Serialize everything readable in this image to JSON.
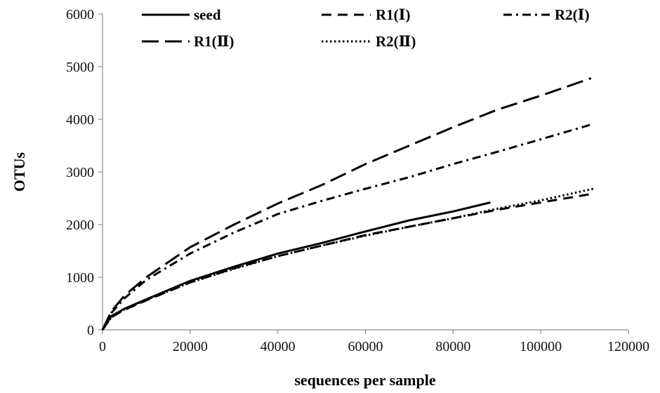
{
  "chart_data": {
    "type": "line",
    "title": "",
    "xlabel": "sequences per sample",
    "ylabel": "OTUs",
    "xlim": [
      0,
      120000
    ],
    "ylim": [
      0,
      6000
    ],
    "xticks": [
      0,
      20000,
      40000,
      60000,
      80000,
      100000,
      120000
    ],
    "yticks": [
      0,
      1000,
      2000,
      3000,
      4000,
      5000,
      6000
    ],
    "xtick_labels": [
      "0",
      "20000",
      "40000",
      "60000",
      "80000",
      "100000",
      "120000"
    ],
    "ytick_labels": [
      "0",
      "1000",
      "2000",
      "3000",
      "4000",
      "5000",
      "6000"
    ],
    "grid": false,
    "legend_position": "top",
    "series": [
      {
        "name": "seed",
        "style": "solid",
        "color": "#000000",
        "x": [
          0,
          2000,
          5000,
          10000,
          20000,
          30000,
          40000,
          50000,
          60000,
          70000,
          80000,
          88500
        ],
        "y": [
          0,
          260,
          400,
          580,
          930,
          1200,
          1450,
          1650,
          1870,
          2080,
          2250,
          2420
        ]
      },
      {
        "name": "R1(Ⅰ)",
        "style": "dashed",
        "color": "#000000",
        "x": [
          0,
          2000,
          5000,
          10000,
          20000,
          30000,
          40000,
          50000,
          60000,
          70000,
          80000,
          90000,
          100000,
          111500
        ],
        "y": [
          0,
          240,
          380,
          560,
          900,
          1170,
          1400,
          1600,
          1800,
          1960,
          2120,
          2280,
          2420,
          2580
        ]
      },
      {
        "name": "R2(Ⅰ)",
        "style": "dashdot",
        "color": "#000000",
        "x": [
          0,
          2000,
          5000,
          10000,
          20000,
          30000,
          40000,
          50000,
          60000,
          70000,
          80000,
          90000,
          100000,
          111500
        ],
        "y": [
          0,
          320,
          600,
          950,
          1450,
          1850,
          2200,
          2450,
          2680,
          2900,
          3150,
          3380,
          3620,
          3900
        ]
      },
      {
        "name": "R1(Ⅱ)",
        "style": "longdash",
        "color": "#000000",
        "x": [
          0,
          2000,
          5000,
          10000,
          20000,
          30000,
          40000,
          50000,
          60000,
          70000,
          80000,
          90000,
          100000,
          111500
        ],
        "y": [
          0,
          350,
          650,
          1000,
          1570,
          2000,
          2400,
          2750,
          3150,
          3500,
          3850,
          4180,
          4450,
          4780
        ]
      },
      {
        "name": "R2(Ⅱ)",
        "style": "dotted",
        "color": "#000000",
        "x": [
          0,
          2000,
          5000,
          10000,
          20000,
          30000,
          40000,
          50000,
          60000,
          70000,
          80000,
          90000,
          100000,
          112000
        ],
        "y": [
          0,
          240,
          390,
          570,
          900,
          1160,
          1400,
          1600,
          1790,
          1960,
          2120,
          2300,
          2460,
          2680
        ]
      }
    ]
  }
}
